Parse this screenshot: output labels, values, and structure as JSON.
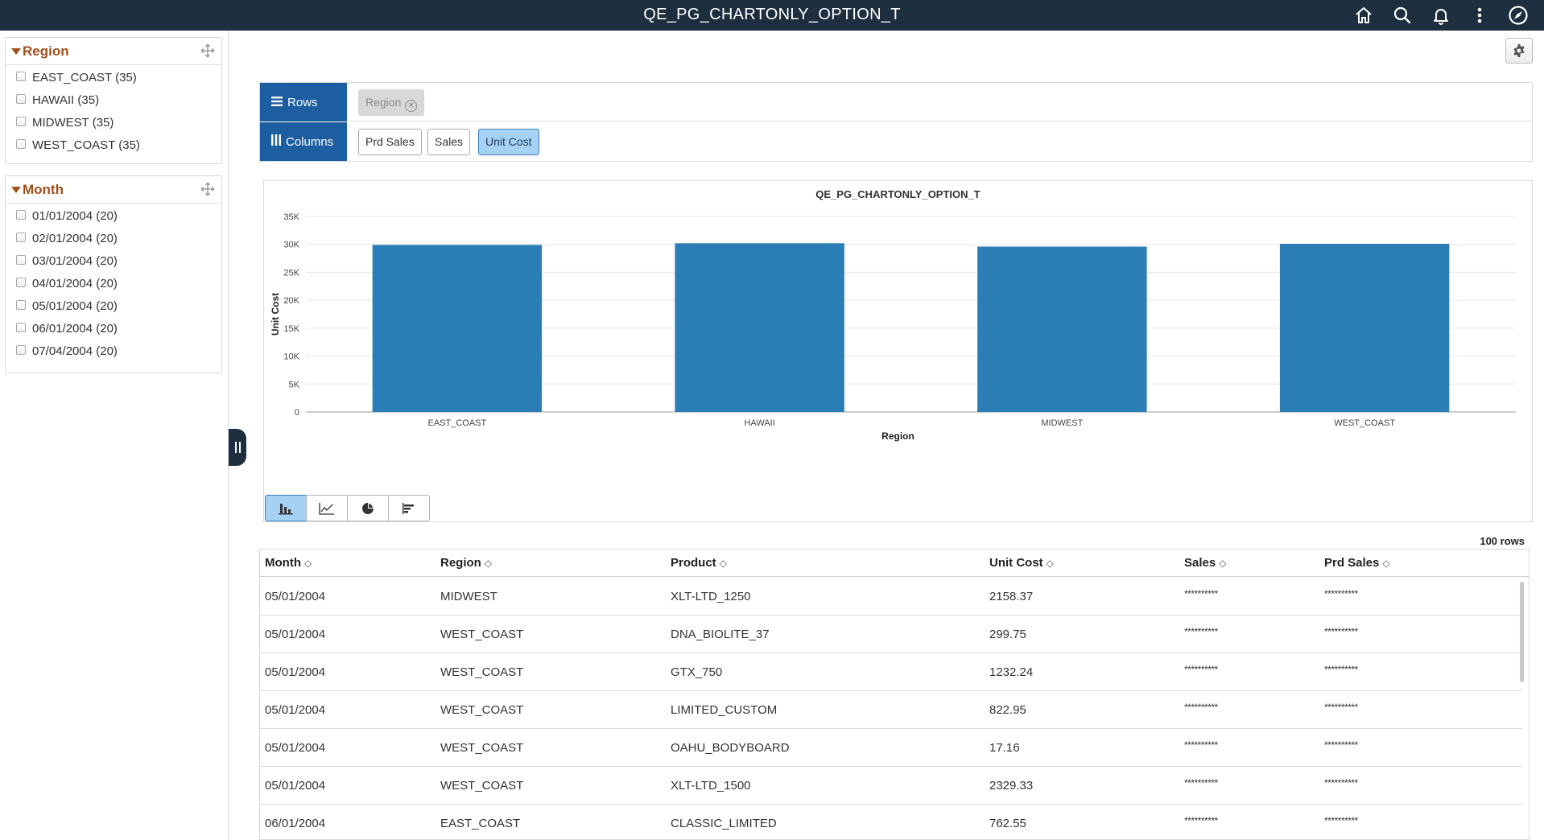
{
  "app": {
    "title": "QE_PG_CHARTONLY_OPTION_T"
  },
  "header_icons": [
    "home-icon",
    "search-icon",
    "bell-icon",
    "more-vertical-icon",
    "navbar-compass-icon"
  ],
  "facets": [
    {
      "title": "Region",
      "items": [
        {
          "label": "EAST_COAST (35)"
        },
        {
          "label": "HAWAII (35)"
        },
        {
          "label": "MIDWEST (35)"
        },
        {
          "label": "WEST_COAST (35)"
        }
      ]
    },
    {
      "title": "Month",
      "items": [
        {
          "label": "01/01/2004 (20)"
        },
        {
          "label": "02/01/2004 (20)"
        },
        {
          "label": "03/01/2004 (20)"
        },
        {
          "label": "04/01/2004 (20)"
        },
        {
          "label": "05/01/2004 (20)"
        },
        {
          "label": "06/01/2004 (20)"
        },
        {
          "label": "07/04/2004 (20)"
        }
      ]
    }
  ],
  "rows_panel": {
    "rows_label": "Rows",
    "columns_label": "Columns",
    "row_fields": [
      "Region"
    ],
    "column_fields": [
      "Prd Sales",
      "Sales",
      "Unit Cost"
    ],
    "active_column": "Unit Cost"
  },
  "chart_data": {
    "type": "bar",
    "title": "QE_PG_CHARTONLY_OPTION_T",
    "xlabel": "Region",
    "ylabel": "Unit Cost",
    "categories": [
      "EAST_COAST",
      "HAWAII",
      "MIDWEST",
      "WEST_COAST"
    ],
    "series": [
      {
        "values": [
          29900,
          30200,
          29600,
          30100
        ]
      }
    ],
    "ylim": [
      0,
      35000
    ],
    "yticks": [
      "0",
      "5K",
      "10K",
      "15K",
      "20K",
      "25K",
      "30K",
      "35K"
    ],
    "grid": true,
    "bar_color": "#2a7db5"
  },
  "chart_types": [
    "bar-chart-icon",
    "line-chart-icon",
    "pie-chart-icon",
    "horizontal-bar-chart-icon"
  ],
  "grid": {
    "row_count": "100 rows",
    "columns": [
      "Month",
      "Region",
      "Product",
      "Unit Cost",
      "Sales",
      "Prd Sales"
    ],
    "rows": [
      [
        "05/01/2004",
        "MIDWEST",
        "XLT-LTD_1250",
        "2158.37",
        "**********",
        "**********"
      ],
      [
        "05/01/2004",
        "WEST_COAST",
        "DNA_BIOLITE_37",
        "299.75",
        "**********",
        "**********"
      ],
      [
        "05/01/2004",
        "WEST_COAST",
        "GTX_750",
        "1232.24",
        "**********",
        "**********"
      ],
      [
        "05/01/2004",
        "WEST_COAST",
        "LIMITED_CUSTOM",
        "822.95",
        "**********",
        "**********"
      ],
      [
        "05/01/2004",
        "WEST_COAST",
        "OAHU_BODYBOARD",
        "17.16",
        "**********",
        "**********"
      ],
      [
        "05/01/2004",
        "WEST_COAST",
        "XLT-LTD_1500",
        "2329.33",
        "**********",
        "**********"
      ],
      [
        "06/01/2004",
        "EAST_COAST",
        "CLASSIC_LIMITED",
        "762.55",
        "**********",
        "**********"
      ]
    ]
  }
}
